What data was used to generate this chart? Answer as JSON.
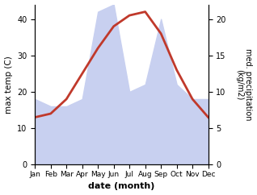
{
  "months": [
    "Jan",
    "Feb",
    "Mar",
    "Apr",
    "May",
    "Jun",
    "Jul",
    "Aug",
    "Sep",
    "Oct",
    "Nov",
    "Dec"
  ],
  "temp": [
    13,
    14,
    18,
    25,
    32,
    38,
    41,
    42,
    36,
    26,
    18,
    13
  ],
  "precip": [
    9,
    8,
    8,
    9,
    21,
    22,
    10,
    11,
    20,
    11,
    9,
    9
  ],
  "temp_color": "#c0392b",
  "precip_fill_color": "#c8d0f0",
  "xlabel": "date (month)",
  "ylabel_left": "max temp (C)",
  "ylabel_right": "med. precipitation\n(kg/m2)",
  "ylim_left": [
    0,
    44
  ],
  "ylim_right": [
    0,
    22
  ],
  "temp_lw": 2.0,
  "figsize": [
    3.18,
    2.42
  ],
  "dpi": 100
}
